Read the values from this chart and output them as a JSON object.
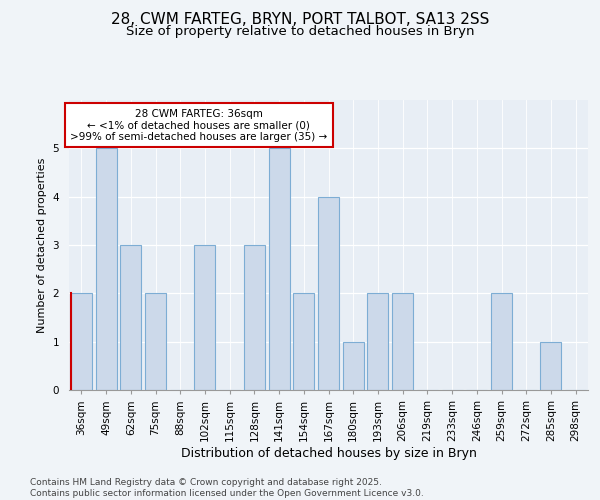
{
  "title1": "28, CWM FARTEG, BRYN, PORT TALBOT, SA13 2SS",
  "title2": "Size of property relative to detached houses in Bryn",
  "xlabel": "Distribution of detached houses by size in Bryn",
  "ylabel": "Number of detached properties",
  "categories": [
    "36sqm",
    "49sqm",
    "62sqm",
    "75sqm",
    "88sqm",
    "102sqm",
    "115sqm",
    "128sqm",
    "141sqm",
    "154sqm",
    "167sqm",
    "180sqm",
    "193sqm",
    "206sqm",
    "219sqm",
    "233sqm",
    "246sqm",
    "259sqm",
    "272sqm",
    "285sqm",
    "298sqm"
  ],
  "values": [
    2,
    5,
    3,
    2,
    0,
    3,
    0,
    3,
    5,
    2,
    4,
    1,
    2,
    2,
    0,
    0,
    0,
    2,
    0,
    1,
    0
  ],
  "bar_color": "#ccd9ea",
  "bar_edge_color": "#7dadd4",
  "highlight_index": 0,
  "highlight_edge_color": "#cc0000",
  "annotation_text": "28 CWM FARTEG: 36sqm\n← <1% of detached houses are smaller (0)\n>99% of semi-detached houses are larger (35) →",
  "annotation_box_facecolor": "#ffffff",
  "annotation_box_edgecolor": "#cc0000",
  "ylim": [
    0,
    6
  ],
  "yticks": [
    0,
    1,
    2,
    3,
    4,
    5,
    6
  ],
  "axes_facecolor": "#e8eef5",
  "fig_facecolor": "#f0f4f8",
  "footer": "Contains HM Land Registry data © Crown copyright and database right 2025.\nContains public sector information licensed under the Open Government Licence v3.0.",
  "title_fontsize": 11,
  "subtitle_fontsize": 9.5,
  "xlabel_fontsize": 9,
  "ylabel_fontsize": 8,
  "tick_fontsize": 7.5,
  "annot_fontsize": 7.5,
  "footer_fontsize": 6.5
}
